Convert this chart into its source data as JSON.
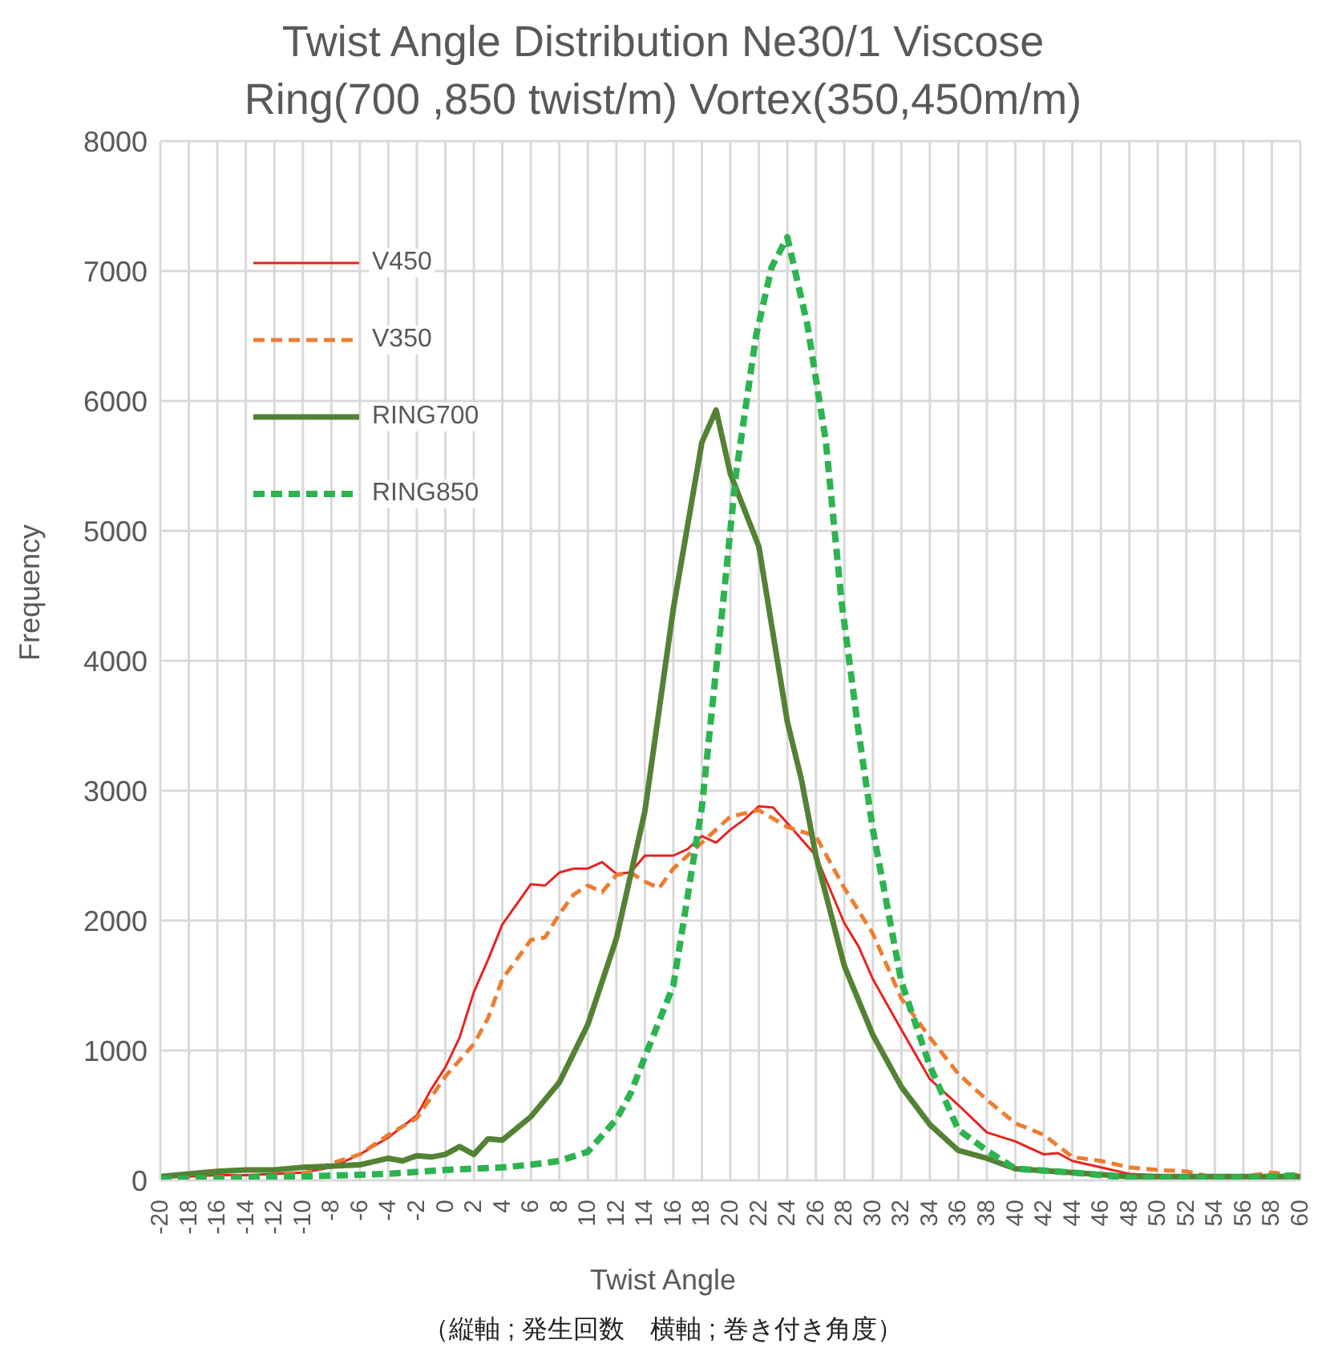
{
  "chart_data": {
    "type": "line",
    "title": "Twist Angle Distribution Ne30/1 Viscose",
    "subtitle": "Ring(700 ,850 twist/m)  Vortex(350,450m/m)",
    "xlabel": "Twist Angle",
    "ylabel": "Frequency",
    "annotations": [
      "（縦軸 ; 発生回数　横軸 ; 巻き付き角度）"
    ],
    "xlim": [
      -20,
      60
    ],
    "xticks": [
      -20,
      -18,
      -16,
      -14,
      -12,
      -10,
      -8,
      -6,
      -4,
      -2,
      0,
      2,
      4,
      6,
      8,
      10,
      12,
      14,
      16,
      18,
      20,
      22,
      24,
      26,
      28,
      30,
      32,
      34,
      36,
      38,
      40,
      42,
      44,
      46,
      48,
      50,
      52,
      54,
      56,
      58,
      60
    ],
    "ylim": [
      0,
      8000
    ],
    "yticks": [
      0,
      1000,
      2000,
      3000,
      4000,
      5000,
      6000,
      7000,
      8000
    ],
    "grid": true,
    "legend": "top left",
    "marker": "none",
    "series": [
      {
        "name": "V450",
        "color": "#e8231f",
        "line_style": "solid",
        "x": [
          -20,
          -18,
          -16,
          -14,
          -12,
          -10,
          -8,
          -6,
          -4,
          -2,
          -1,
          0,
          1,
          2,
          3,
          4,
          6,
          7,
          8,
          9,
          10,
          11,
          12,
          13,
          14,
          16,
          17,
          18,
          19,
          20,
          21,
          22,
          23,
          24,
          26,
          28,
          29,
          30,
          32,
          34,
          36,
          38,
          40,
          42,
          43,
          44,
          46,
          48,
          50,
          52,
          54,
          56,
          58,
          60
        ],
        "values": [
          20,
          30,
          40,
          40,
          50,
          60,
          100,
          200,
          330,
          500,
          700,
          870,
          1100,
          1450,
          1700,
          1970,
          2280,
          2270,
          2370,
          2400,
          2400,
          2450,
          2360,
          2370,
          2500,
          2500,
          2550,
          2650,
          2600,
          2700,
          2780,
          2880,
          2870,
          2750,
          2500,
          1980,
          1800,
          1550,
          1160,
          780,
          580,
          370,
          300,
          200,
          210,
          150,
          100,
          50,
          40,
          30,
          20,
          20,
          40,
          30
        ]
      },
      {
        "name": "V350",
        "color": "#ed7d31",
        "line_style": "dashed",
        "x": [
          -20,
          -14,
          -10,
          -8,
          -6,
          -4,
          -2,
          0,
          2,
          3,
          4,
          6,
          7,
          8,
          9,
          10,
          11,
          12,
          13,
          14,
          15,
          16,
          18,
          20,
          22,
          24,
          26,
          28,
          30,
          32,
          34,
          36,
          38,
          40,
          42,
          44,
          46,
          48,
          50,
          52,
          54,
          56,
          58,
          60
        ],
        "values": [
          0,
          20,
          50,
          130,
          200,
          350,
          480,
          800,
          1050,
          1250,
          1550,
          1850,
          1870,
          2050,
          2200,
          2270,
          2220,
          2350,
          2370,
          2300,
          2250,
          2400,
          2600,
          2800,
          2850,
          2720,
          2650,
          2250,
          1900,
          1400,
          1100,
          820,
          620,
          440,
          350,
          180,
          150,
          100,
          80,
          70,
          20,
          30,
          60,
          40
        ]
      },
      {
        "name": "RING700",
        "color": "#548235",
        "line_style": "solid",
        "x": [
          -20,
          -16,
          -14,
          -12,
          -10,
          -8,
          -6,
          -4,
          -3,
          -2,
          -1,
          0,
          1,
          2,
          3,
          4,
          6,
          8,
          10,
          12,
          14,
          16,
          18,
          19,
          20,
          22,
          24,
          25,
          26,
          28,
          30,
          32,
          34,
          36,
          38,
          40,
          44,
          48,
          60
        ],
        "values": [
          30,
          70,
          80,
          80,
          100,
          110,
          120,
          170,
          150,
          190,
          180,
          200,
          260,
          200,
          320,
          310,
          490,
          755,
          1200,
          1860,
          2840,
          4400,
          5680,
          5930,
          5440,
          4880,
          3530,
          3080,
          2500,
          1650,
          1120,
          720,
          430,
          230,
          170,
          90,
          60,
          30,
          30
        ]
      },
      {
        "name": "RING850",
        "color": "#2db350",
        "line_style": "dashed",
        "x": [
          -20,
          -10,
          -4,
          0,
          4,
          6,
          8,
          10,
          12,
          13,
          14,
          16,
          18,
          19.5,
          20.4,
          21.8,
          22.9,
          24,
          25.4,
          26.7,
          27.8,
          29,
          30,
          32,
          34,
          36,
          38,
          40,
          44,
          48,
          56,
          60
        ],
        "values": [
          10,
          30,
          50,
          80,
          100,
          120,
          150,
          220,
          470,
          670,
          950,
          1500,
          2870,
          4460,
          5440,
          6500,
          7030,
          7260,
          6590,
          5690,
          4460,
          3450,
          2700,
          1530,
          880,
          390,
          230,
          90,
          60,
          20,
          20,
          40
        ]
      }
    ]
  }
}
